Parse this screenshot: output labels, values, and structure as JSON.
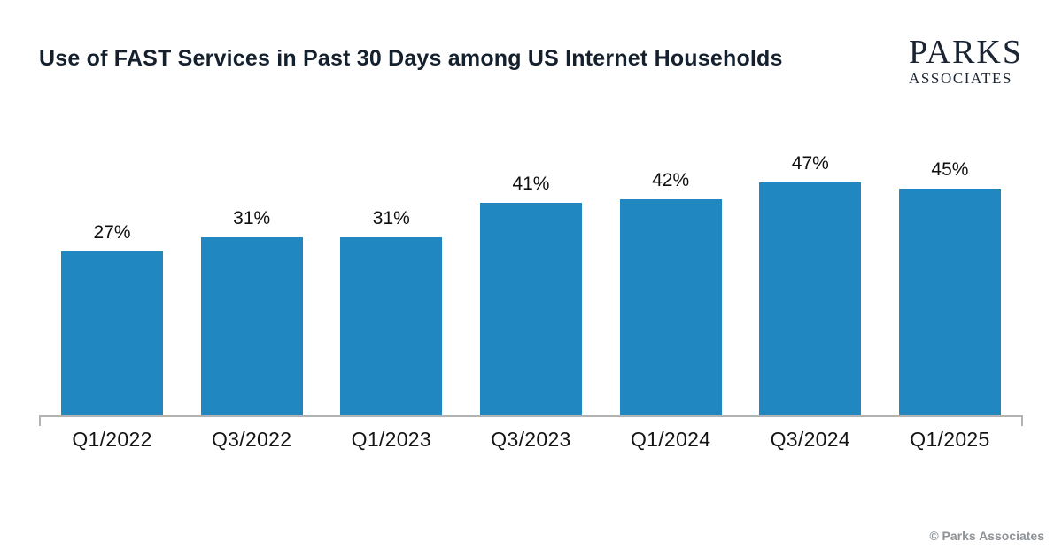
{
  "header": {
    "title": "Use of FAST Services in Past 30 Days among US Internet Households",
    "logo": {
      "line1": "PARKS",
      "line2": "ASSOCIATES"
    }
  },
  "chart_data": {
    "type": "bar",
    "title": "Use of FAST Services in Past 30 Days among US Internet Households",
    "categories": [
      "Q1/2022",
      "Q3/2022",
      "Q1/2023",
      "Q3/2023",
      "Q1/2024",
      "Q3/2024",
      "Q1/2025"
    ],
    "values": [
      27,
      31,
      31,
      41,
      42,
      47,
      45
    ],
    "value_labels": [
      "27%",
      "31%",
      "31%",
      "41%",
      "42%",
      "47%",
      "45%"
    ],
    "xlabel": "",
    "ylabel": "",
    "ylim": [
      0,
      50
    ],
    "grid": false,
    "legend": false,
    "bar_color": "#2187c1",
    "axis_color": "#b3b3b3"
  },
  "footer": {
    "copyright": "© Parks Associates"
  }
}
